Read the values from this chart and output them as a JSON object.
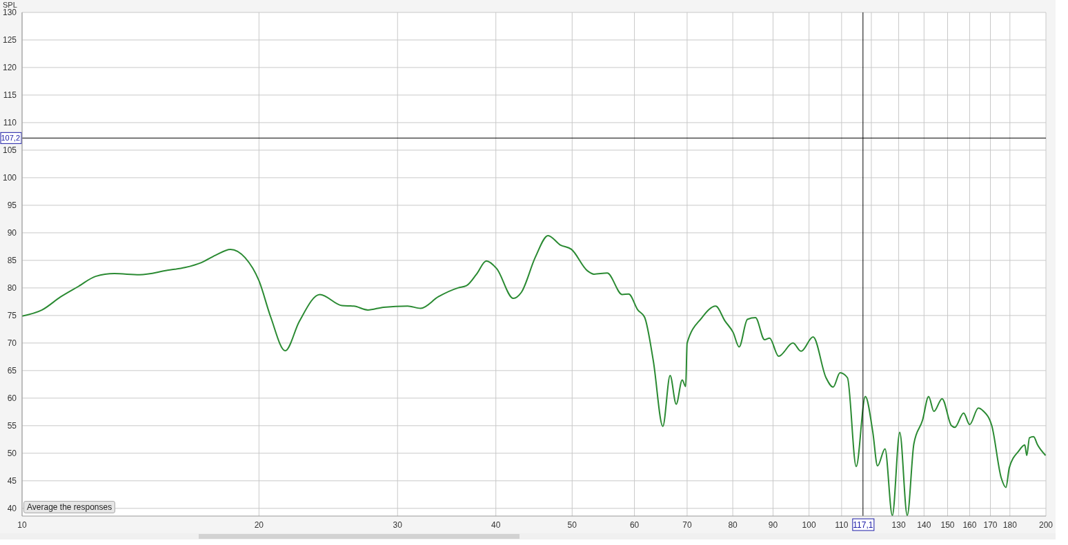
{
  "chart_data": {
    "type": "line",
    "ylabel": "SPL",
    "annotations": [
      "Average the responses"
    ],
    "log": "x",
    "grid": true,
    "legend": false,
    "marker": "none",
    "line_style": "solid",
    "xlim": [
      10,
      200
    ],
    "ylim": [
      38.6,
      130
    ],
    "xticks": [
      10,
      20,
      30,
      40,
      50,
      60,
      70,
      80,
      90,
      100,
      110,
      {
        "value": 120,
        "label": null
      },
      130,
      140,
      150,
      160,
      170,
      180,
      200
    ],
    "yticks": [
      40,
      45,
      50,
      55,
      60,
      65,
      70,
      75,
      80,
      85,
      90,
      95,
      100,
      105,
      110,
      115,
      120,
      125,
      130
    ],
    "ref_lines": [
      {
        "axis": "y",
        "value": 107.2,
        "label": "107,2",
        "color": "#000000"
      },
      {
        "axis": "x",
        "value": 117.1,
        "label": "117,1",
        "color": "#000000"
      }
    ],
    "x": [
      10,
      10.6,
      11.2,
      11.8,
      12.4,
      13.1,
      14.1,
      15.3,
      16.1,
      16.9,
      17.6,
      18.4,
      19.2,
      20,
      20.7,
      21.6,
      22.5,
      23.9,
      25.5,
      26.4,
      27.5,
      28.8,
      30.9,
      32.1,
      33.8,
      35.8,
      36.7,
      37.8,
      38.9,
      40.1,
      42.1,
      43.1,
      44.9,
      46.6,
      48.3,
      49.9,
      52.3,
      53.3,
      55.4,
      57.9,
      59,
      60.6,
      61.8,
      63.4,
      65.2,
      66.6,
      67.8,
      69,
      69.7,
      70,
      73,
      76.1,
      78.2,
      80.1,
      81.5,
      83.5,
      85.5,
      87.8,
      89.1,
      91.5,
      95.4,
      97.7,
      101.2,
      105.1,
      107.3,
      109.5,
      111.9,
      114.8,
      117.9,
      120.5,
      122.2,
      124.9,
      127.6,
      130.4,
      133.3,
      135.9,
      139.4,
      141.9,
      144.1,
      147.6,
      151.7,
      153.2,
      157.2,
      160,
      164.1,
      166.4,
      170.7,
      175.5,
      177.9,
      179.7,
      184.7,
      188,
      189.1,
      190.6,
      192.9,
      195.2,
      199.8
    ],
    "series": [
      {
        "color": "#2a8a32",
        "values": [
          74.9,
          76,
          78.4,
          80.3,
          82.1,
          82.6,
          82.4,
          83.2,
          83.7,
          84.6,
          85.9,
          87,
          85.5,
          81.3,
          74.7,
          68.6,
          73.9,
          78.8,
          76.8,
          76.7,
          76,
          76.5,
          76.7,
          76.3,
          78.4,
          80,
          80.4,
          82.5,
          84.9,
          83.5,
          78.1,
          79.2,
          85.6,
          89.5,
          87.8,
          87,
          83.1,
          82.5,
          82.7,
          78.8,
          78.9,
          76,
          74.7,
          66.8,
          54.9,
          64.1,
          58.9,
          63.3,
          62.1,
          70,
          74.5,
          76.7,
          74,
          71.9,
          69.3,
          74.3,
          74.6,
          70.6,
          70.9,
          67.6,
          70,
          68.5,
          71.1,
          63.7,
          62,
          64.6,
          63.7,
          47.6,
          60.3,
          53.9,
          47.7,
          50.8,
          38.7,
          53.8,
          38.7,
          51.7,
          56,
          60.3,
          57.6,
          59.9,
          55,
          54.7,
          57.3,
          55.2,
          58.2,
          57.7,
          55,
          45.5,
          43.8,
          47.4,
          50.4,
          51.5,
          49.6,
          52.8,
          53,
          51.5,
          49.6
        ]
      }
    ]
  }
}
